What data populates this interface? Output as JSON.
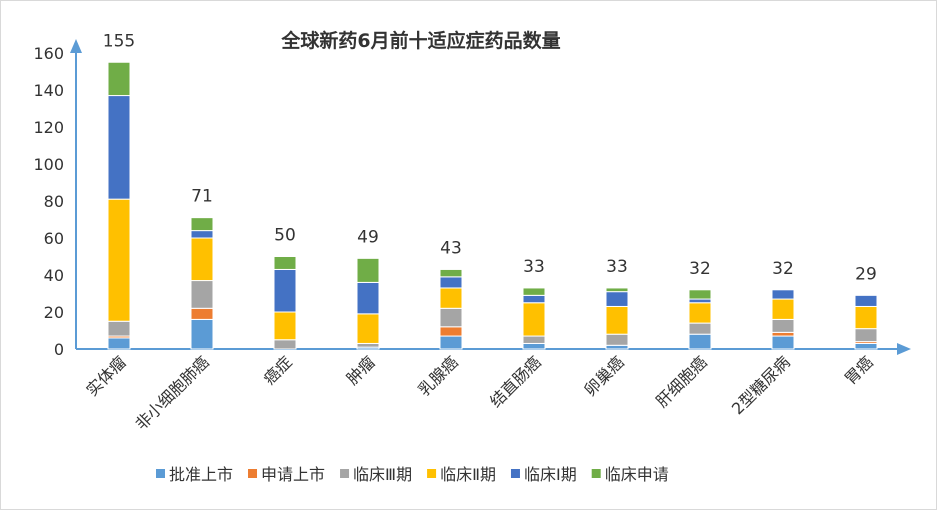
{
  "chart_data": {
    "type": "bar",
    "stacked": true,
    "title": "全球新药6月前十适应症药品数量",
    "categories": [
      "实体瘤",
      "非小细胞肺癌",
      "癌症",
      "肿瘤",
      "乳腺癌",
      "结直肠癌",
      "卵巢癌",
      "肝细胞癌",
      "2型糖尿病",
      "胃癌"
    ],
    "totals": [
      155,
      71,
      50,
      49,
      43,
      33,
      33,
      32,
      32,
      29
    ],
    "series": [
      {
        "name": "批准上市",
        "color": "#5b9bd5",
        "values": [
          6,
          16,
          0,
          1,
          7,
          3,
          2,
          8,
          7,
          3
        ]
      },
      {
        "name": "申请上市",
        "color": "#ed7d31",
        "values": [
          1,
          6,
          0,
          0,
          5,
          0,
          0,
          0,
          2,
          1
        ]
      },
      {
        "name": "临床Ⅲ期",
        "color": "#a5a5a5",
        "values": [
          8,
          15,
          5,
          2,
          10,
          4,
          6,
          6,
          7,
          7
        ]
      },
      {
        "name": "临床Ⅱ期",
        "color": "#ffc000",
        "values": [
          66,
          23,
          15,
          16,
          11,
          18,
          15,
          11,
          11,
          12
        ]
      },
      {
        "name": "临床Ⅰ期",
        "color": "#4472c4",
        "values": [
          56,
          4,
          23,
          17,
          6,
          4,
          8,
          2,
          5,
          6
        ]
      },
      {
        "name": "临床申请",
        "color": "#70ad47",
        "values": [
          18,
          7,
          7,
          13,
          4,
          4,
          2,
          5,
          0,
          0
        ]
      }
    ],
    "yticks": [
      0,
      20,
      40,
      60,
      80,
      100,
      120,
      140,
      160
    ],
    "ylim": [
      0,
      160
    ],
    "grid": false,
    "legend": "bottom",
    "axis_color": "#5b9bd5"
  }
}
